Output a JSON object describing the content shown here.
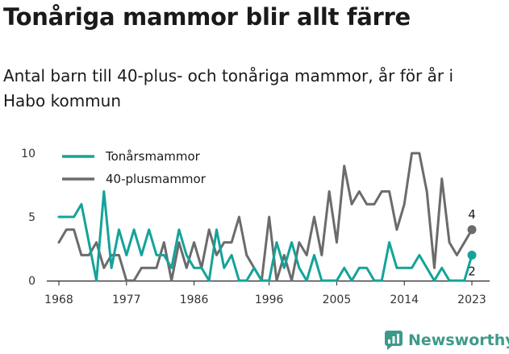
{
  "header": {
    "title": "Tonåriga mammor blir allt färre",
    "subtitle": "Antal barn till 40-plus- och tonåriga mammor, år för år i Habo kommun"
  },
  "brand": {
    "name": "Newsworthy",
    "icon": "newsworthy-logo-icon",
    "color": "#3d9a8a"
  },
  "chart_data": {
    "type": "line",
    "x": [
      1968,
      1969,
      1970,
      1971,
      1972,
      1973,
      1974,
      1975,
      1976,
      1977,
      1978,
      1979,
      1980,
      1981,
      1982,
      1983,
      1984,
      1985,
      1986,
      1987,
      1988,
      1989,
      1990,
      1991,
      1992,
      1993,
      1994,
      1995,
      1996,
      1997,
      1998,
      1999,
      2000,
      2001,
      2002,
      2003,
      2004,
      2005,
      2006,
      2007,
      2008,
      2009,
      2010,
      2011,
      2012,
      2013,
      2014,
      2015,
      2016,
      2017,
      2018,
      2019,
      2020,
      2021,
      2022,
      2023
    ],
    "series": [
      {
        "name": "Tonårsmammor",
        "color": "#14a39a",
        "values": [
          5,
          5,
          5,
          6,
          3,
          0,
          7,
          1,
          4,
          2,
          4,
          2,
          4,
          2,
          2,
          1,
          4,
          2,
          1,
          1,
          0,
          4,
          1,
          2,
          0,
          0,
          1,
          0,
          0,
          3,
          1,
          3,
          1,
          0,
          2,
          0,
          0,
          0,
          1,
          0,
          1,
          1,
          0,
          0,
          3,
          1,
          1,
          1,
          2,
          1,
          0,
          1,
          0,
          0,
          0,
          2
        ]
      },
      {
        "name": "40-plusmammor",
        "color": "#6b6b6e",
        "values": [
          3,
          4,
          4,
          2,
          2,
          3,
          1,
          2,
          2,
          0,
          0,
          1,
          1,
          1,
          3,
          0,
          3,
          1,
          3,
          1,
          4,
          2,
          3,
          3,
          5,
          2,
          1,
          0,
          5,
          0,
          2,
          0,
          3,
          2,
          5,
          2,
          7,
          3,
          9,
          6,
          7,
          6,
          6,
          7,
          7,
          4,
          6,
          10,
          10,
          7,
          1,
          8,
          3,
          2,
          3,
          4
        ]
      }
    ],
    "end_labels": [
      "2",
      "4"
    ],
    "x_ticks": [
      1968,
      1977,
      1986,
      1996,
      2005,
      2014,
      2023
    ],
    "y_ticks": [
      0,
      5,
      10
    ],
    "xlim": [
      1968,
      2023
    ],
    "ylim": [
      0,
      10
    ],
    "legend_position": "top-left",
    "grid": false
  }
}
